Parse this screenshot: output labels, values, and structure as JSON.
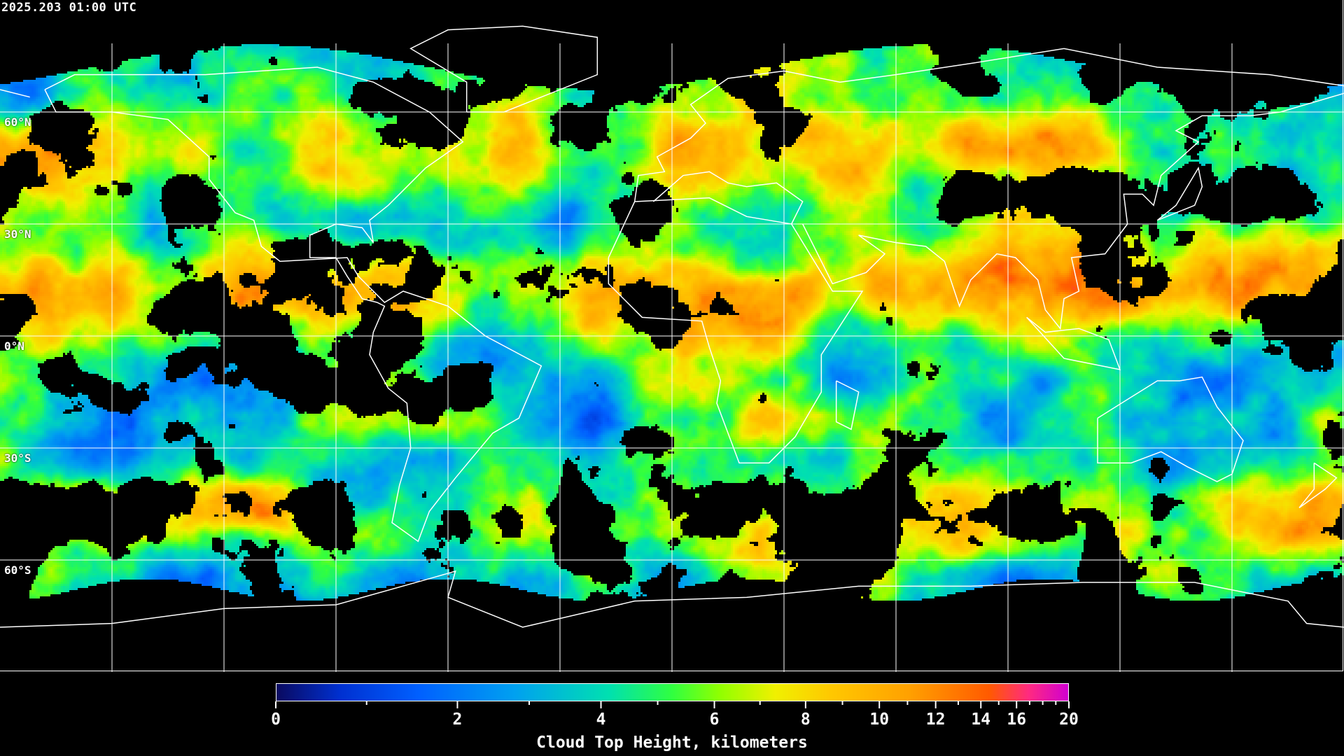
{
  "header": {
    "timestamp": "2025.203 01:00 UTC"
  },
  "map": {
    "projection": "equirectangular",
    "grid_lon_step_deg": 30,
    "grid_lat_step_deg": 30,
    "lat_labels": [
      {
        "lat": 60,
        "text": "60°N"
      },
      {
        "lat": 30,
        "text": "30°N"
      },
      {
        "lat": 0,
        "text": "0°N"
      },
      {
        "lat": -30,
        "text": "30°S"
      },
      {
        "lat": -60,
        "text": "60°S"
      }
    ],
    "grid_color": "#ffffff",
    "coastline_color": "#ffffff",
    "clear_sky_color": "#000000"
  },
  "colorbar": {
    "title": "Cloud Top Height, kilometers",
    "min": 0,
    "max": 20,
    "major_ticks": [
      {
        "value": 0,
        "text": "0"
      },
      {
        "value": 2,
        "text": "2"
      },
      {
        "value": 4,
        "text": "4"
      },
      {
        "value": 6,
        "text": "6"
      },
      {
        "value": 8,
        "text": "8"
      },
      {
        "value": 10,
        "text": "10"
      },
      {
        "value": 12,
        "text": "12"
      },
      {
        "value": 14,
        "text": "14"
      },
      {
        "value": 16,
        "text": "16"
      },
      {
        "value": 20,
        "text": "20"
      }
    ],
    "minor_ticks": [
      1,
      3,
      5,
      7,
      9,
      11,
      13,
      15,
      17,
      18,
      19
    ],
    "colors": [
      "#0a0a60",
      "#0030d0",
      "#0060ff",
      "#00a0f0",
      "#00e0b0",
      "#30ff40",
      "#90ff00",
      "#f0f000",
      "#ffc800",
      "#ffa000",
      "#ff5a00",
      "#ff2a80",
      "#d000d0"
    ]
  }
}
